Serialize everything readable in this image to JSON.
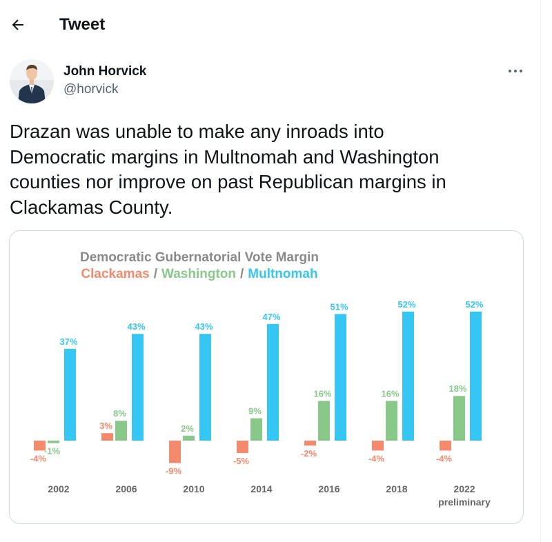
{
  "header": {
    "title": "Tweet",
    "back_icon": "arrow-left-icon"
  },
  "tweet": {
    "author_name": "John Horvick",
    "handle": "@horvick",
    "more_icon": "more-horizontal-icon",
    "text": "Drazan was unable to make any inroads into\nDemocratic margins in Multnomah and Washington\ncounties nor improve on past Republican margins in\nClackamas County."
  },
  "chart_data": {
    "type": "bar",
    "title": "Democratic Gubernatorial Vote Margin",
    "legend": [
      {
        "name": "Clackamas",
        "color": "#f4896b"
      },
      {
        "name": "Washington",
        "color": "#88c98a"
      },
      {
        "name": "Multnomah",
        "color": "#35c6f4"
      }
    ],
    "separator": "/",
    "categories": [
      "2002",
      "2006",
      "2010",
      "2014",
      "2016",
      "2018",
      "2022"
    ],
    "category_sublabels": [
      "",
      "",
      "",
      "",
      "",
      "",
      "preliminary"
    ],
    "series": [
      {
        "name": "Clackamas",
        "color": "#f4896b",
        "values": [
          -4,
          3,
          -9,
          -5,
          -2,
          -4,
          -4
        ]
      },
      {
        "name": "Washington",
        "color": "#88c98a",
        "values": [
          -1,
          8,
          2,
          9,
          16,
          16,
          18
        ]
      },
      {
        "name": "Multnomah",
        "color": "#35c6f4",
        "values": [
          37,
          43,
          43,
          47,
          51,
          52,
          52
        ]
      }
    ],
    "value_suffix": "%",
    "ylim": [
      -10,
      55
    ],
    "grid": false,
    "legend_placement": "top-center"
  }
}
